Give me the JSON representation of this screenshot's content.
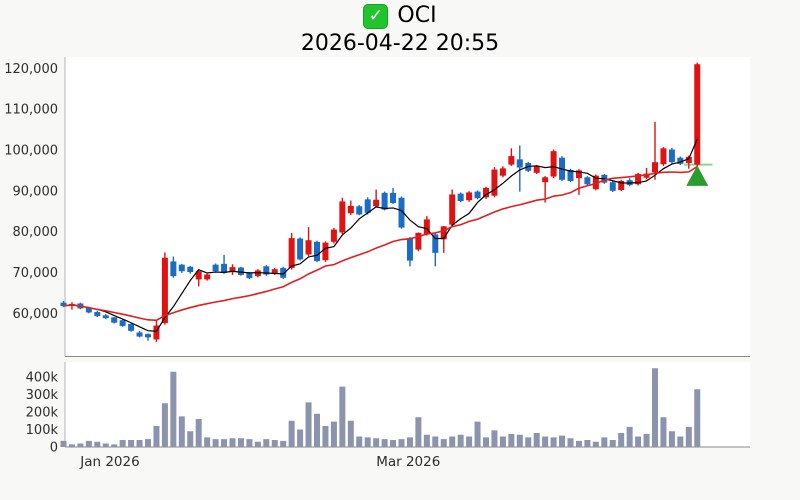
{
  "header": {
    "checkbox_icon": "checked-green-box",
    "check_glyph": "✓",
    "title": "OCI",
    "timestamp": "2026-04-22 20:55"
  },
  "chart_data": {
    "type": "candlestick_with_volume",
    "title": "OCI",
    "subtitle": "2026-04-22 20:55",
    "price_unit": 1000,
    "volume_unit": 1000,
    "grid": false,
    "legend": "none",
    "price_axis": {
      "ticks": [
        {
          "label": "120,000",
          "value": 120
        },
        {
          "label": "110,000",
          "value": 110
        },
        {
          "label": "100,000",
          "value": 100
        },
        {
          "label": "90,000",
          "value": 90
        },
        {
          "label": "80,000",
          "value": 80
        },
        {
          "label": "70,000",
          "value": 70
        },
        {
          "label": "60,000",
          "value": 60
        }
      ],
      "visible_range_thousands": [
        49.5,
        122.8
      ]
    },
    "volume_axis": {
      "ticks": [
        {
          "label": "400k",
          "value": 400
        },
        {
          "label": "300k",
          "value": 300
        },
        {
          "label": "200k",
          "value": 200
        },
        {
          "label": "100k",
          "value": 100
        },
        {
          "label": "0",
          "value": 0
        }
      ],
      "visible_range_thousands": [
        0,
        480
      ]
    },
    "x_axis": {
      "ticks": [
        {
          "label": "Jan 2026",
          "index": 5.5
        },
        {
          "label": "Mar 2026",
          "index": 40.8
        }
      ]
    },
    "candles_ohlcv_thousands": [
      [
        62.6,
        63.0,
        61.5,
        61.8,
        35
      ],
      [
        61.9,
        62.7,
        60.9,
        62.3,
        15
      ],
      [
        62.4,
        62.6,
        61.0,
        61.2,
        20
      ],
      [
        61.3,
        61.5,
        60.0,
        60.2,
        35
      ],
      [
        60.3,
        60.6,
        59.1,
        59.3,
        30
      ],
      [
        59.5,
        59.8,
        58.6,
        58.8,
        20
      ],
      [
        59.0,
        59.1,
        57.5,
        57.7,
        15
      ],
      [
        58.3,
        58.5,
        56.7,
        56.9,
        40
      ],
      [
        57.4,
        57.5,
        55.5,
        55.7,
        40
      ],
      [
        55.3,
        55.7,
        54.1,
        54.3,
        40
      ],
      [
        54.9,
        55.1,
        53.3,
        54.1,
        45
      ],
      [
        53.6,
        58.3,
        53.0,
        57.0,
        120
      ],
      [
        57.6,
        74.9,
        57.2,
        73.6,
        250
      ],
      [
        72.7,
        73.9,
        68.7,
        69.1,
        430
      ],
      [
        71.9,
        72.1,
        69.9,
        70.3,
        175
      ],
      [
        71.4,
        71.6,
        69.7,
        70.1,
        90
      ],
      [
        68.3,
        70.5,
        66.6,
        70.3,
        160
      ],
      [
        68.3,
        69.7,
        68.0,
        69.5,
        55
      ],
      [
        71.9,
        72.2,
        70.0,
        70.3,
        45
      ],
      [
        72.1,
        74.3,
        69.7,
        69.9,
        45
      ],
      [
        70.3,
        72.0,
        69.4,
        71.3,
        50
      ],
      [
        71.2,
        71.4,
        69.2,
        69.4,
        50
      ],
      [
        69.9,
        70.1,
        68.4,
        68.6,
        45
      ],
      [
        69.1,
        70.8,
        68.8,
        70.5,
        30
      ],
      [
        71.5,
        71.8,
        69.2,
        69.5,
        45
      ],
      [
        69.7,
        71.1,
        69.4,
        70.8,
        40
      ],
      [
        71.1,
        71.4,
        68.4,
        68.7,
        35
      ],
      [
        71.1,
        79.7,
        70.7,
        78.4,
        150
      ],
      [
        78.3,
        78.6,
        72.9,
        73.2,
        100
      ],
      [
        74.4,
        81.1,
        74.0,
        77.9,
        255
      ],
      [
        77.5,
        77.8,
        72.5,
        72.8,
        190
      ],
      [
        73.0,
        77.6,
        72.6,
        77.3,
        120
      ],
      [
        77.5,
        80.9,
        77.1,
        80.5,
        145
      ],
      [
        79.8,
        88.3,
        79.4,
        87.4,
        345
      ],
      [
        84.5,
        87.6,
        84.1,
        86.3,
        150
      ],
      [
        86.2,
        86.5,
        84.0,
        84.2,
        60
      ],
      [
        87.9,
        88.4,
        84.2,
        84.6,
        55
      ],
      [
        86.2,
        90.3,
        85.9,
        87.8,
        50
      ],
      [
        89.5,
        89.8,
        85.2,
        85.4,
        45
      ],
      [
        89.5,
        90.7,
        86.8,
        87.0,
        40
      ],
      [
        88.3,
        88.6,
        80.7,
        81.0,
        45
      ],
      [
        78.4,
        78.7,
        71.5,
        72.9,
        55
      ],
      [
        75.6,
        79.8,
        75.2,
        79.7,
        170
      ],
      [
        79.3,
        83.8,
        79.0,
        83.0,
        70
      ],
      [
        79.3,
        79.6,
        71.5,
        74.8,
        60
      ],
      [
        78.1,
        81.4,
        74.8,
        81.3,
        45
      ],
      [
        81.7,
        90.3,
        81.3,
        89.1,
        60
      ],
      [
        89.3,
        89.6,
        87.2,
        87.5,
        70
      ],
      [
        87.7,
        89.9,
        87.3,
        89.6,
        60
      ],
      [
        89.8,
        90.1,
        87.9,
        88.2,
        145
      ],
      [
        88.4,
        91.0,
        88.0,
        90.7,
        55
      ],
      [
        88.8,
        95.8,
        88.4,
        95.2,
        95
      ],
      [
        93.7,
        96.0,
        93.3,
        95.5,
        60
      ],
      [
        96.4,
        100.4,
        96.1,
        98.5,
        75
      ],
      [
        97.7,
        101.1,
        89.8,
        95.7,
        70
      ],
      [
        96.8,
        97.1,
        94.6,
        94.9,
        55
      ],
      [
        94.4,
        96.3,
        94.1,
        96.0,
        80
      ],
      [
        92.1,
        93.6,
        87.1,
        93.3,
        60
      ],
      [
        93.5,
        100.1,
        93.1,
        99.7,
        55
      ],
      [
        98.1,
        98.5,
        92.4,
        92.7,
        65
      ],
      [
        95.1,
        95.4,
        92.1,
        92.4,
        50
      ],
      [
        93.1,
        95.3,
        89.0,
        95.0,
        35
      ],
      [
        93.3,
        93.6,
        91.3,
        91.6,
        40
      ],
      [
        90.4,
        94.0,
        90.1,
        93.7,
        30
      ],
      [
        93.9,
        94.1,
        91.7,
        92.0,
        55
      ],
      [
        92.1,
        92.4,
        89.7,
        90.0,
        40
      ],
      [
        90.2,
        92.7,
        89.9,
        92.4,
        80
      ],
      [
        92.6,
        93.1,
        91.1,
        91.4,
        115
      ],
      [
        91.6,
        94.4,
        91.3,
        94.1,
        60
      ],
      [
        93.2,
        95.6,
        92.8,
        94.2,
        75
      ],
      [
        94.5,
        106.9,
        92.7,
        97.0,
        450
      ],
      [
        96.5,
        100.7,
        96.1,
        100.4,
        170
      ],
      [
        100.1,
        100.5,
        96.7,
        97.0,
        90
      ],
      [
        98.1,
        98.4,
        96.3,
        96.6,
        60
      ],
      [
        96.8,
        98.6,
        95.4,
        98.3,
        115
      ],
      [
        96.4,
        121.4,
        96.0,
        121.0,
        330
      ]
    ],
    "overlays": {
      "ma_fast": {
        "period": 5,
        "color": "#000000",
        "width": 1.2
      },
      "ma_slow": {
        "period": 20,
        "color": "#e02020",
        "width": 1.6
      },
      "marker": {
        "type": "triangle-up",
        "index": 75,
        "price_apex": 96.2,
        "price_base": 91.2,
        "color": "#2a9d2f"
      },
      "level_line": {
        "price": 96.4,
        "from_index": 73.4,
        "to_index": 76.8,
        "color": "#8fd48f",
        "width": 2
      }
    },
    "colors": {
      "up": "#e01212",
      "down": "#1b6cc5",
      "volume": "#8b93ad",
      "background": "#f8f8f6",
      "plot_background": "#ffffff",
      "spine_left": "#b5b5b5",
      "spine_bottom": "#8a8a8a"
    }
  }
}
